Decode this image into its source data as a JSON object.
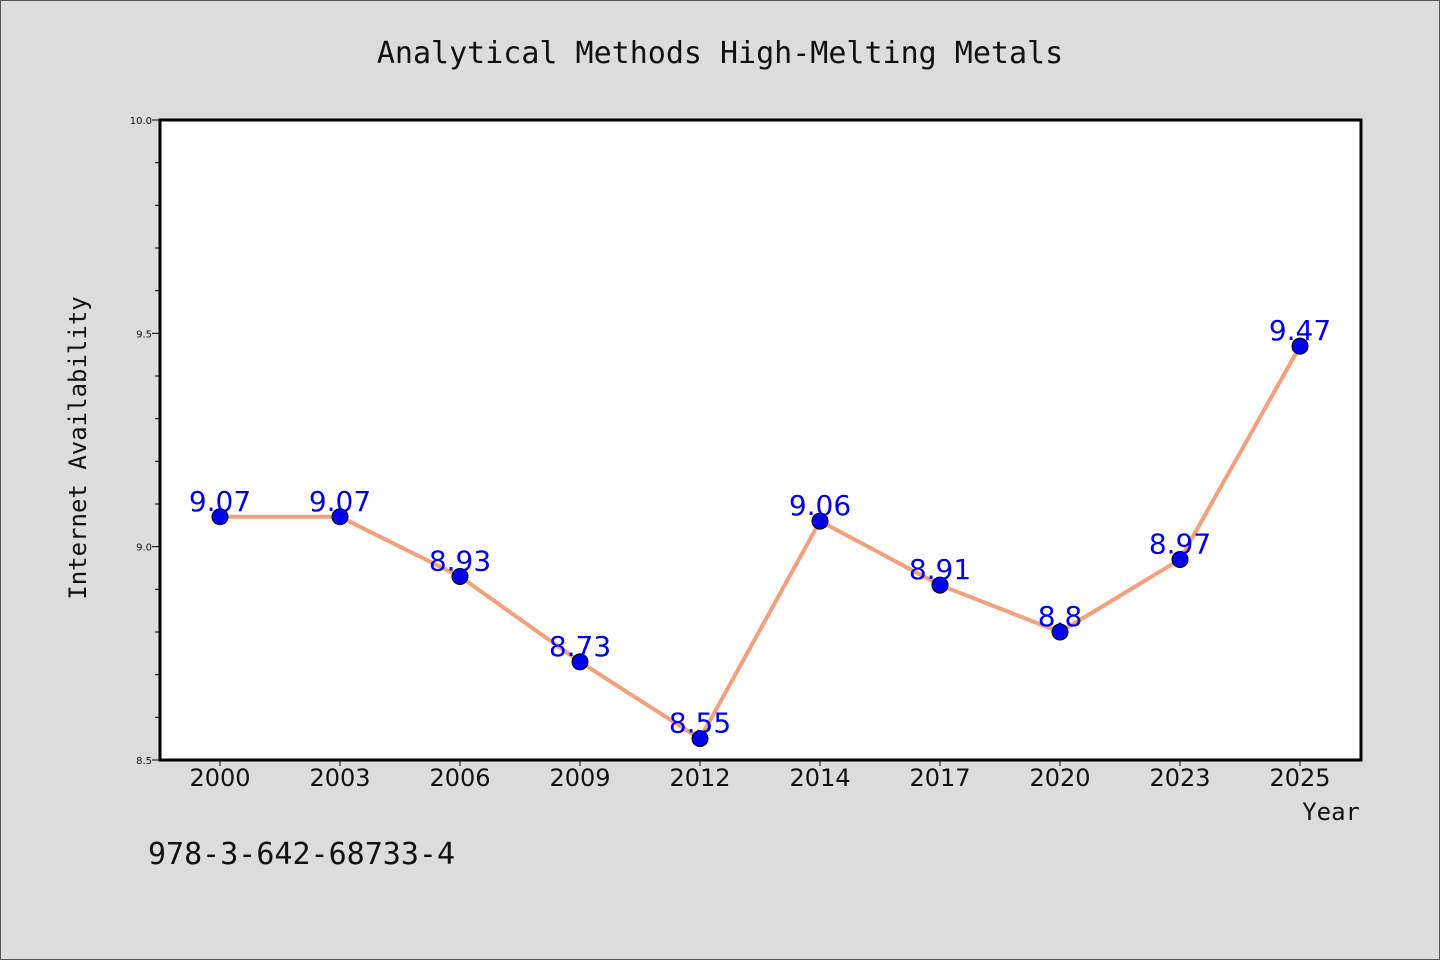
{
  "chart_data": {
    "type": "line",
    "title": "Analytical Methods High-Melting Metals",
    "xlabel": "Year",
    "ylabel": "Internet Availability",
    "categories": [
      "2000",
      "2003",
      "2006",
      "2009",
      "2012",
      "2014",
      "2017",
      "2020",
      "2023",
      "2025"
    ],
    "series": [
      {
        "values": [
          9.07,
          9.07,
          8.93,
          8.73,
          8.55,
          9.06,
          8.91,
          8.8,
          8.97,
          9.47
        ],
        "data_labels": [
          "9.07",
          "9.07",
          "8.93",
          "8.73",
          "8.55",
          "9.06",
          "8.91",
          "8.8",
          "8.97",
          "9.47"
        ]
      }
    ],
    "ylim": [
      8.5,
      10.0
    ],
    "yticks": [
      8.5,
      9.0,
      9.5,
      10.0
    ],
    "ytick_labels": [
      "8.5",
      "9.0",
      "9.5",
      "10.0"
    ],
    "grid": false,
    "legend": "none",
    "colors": {
      "line": "#f4a07c",
      "marker": "#0000ee",
      "data_label": "#0000ee",
      "plot_bg": "#ffffff",
      "figure_bg": "#dcdcdc"
    }
  },
  "footer": {
    "isbn": "978-3-642-68733-4"
  }
}
